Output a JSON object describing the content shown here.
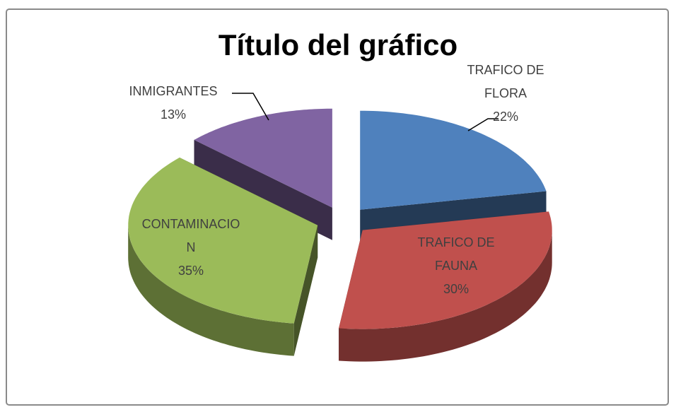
{
  "chart_data": {
    "type": "pie",
    "title": "Título del gráfico",
    "categories": [
      "TRAFICO DE FLORA",
      "TRAFICO DE FAUNA",
      "CONTAMINACION",
      "INMIGRANTES"
    ],
    "values": [
      22,
      30,
      35,
      13
    ],
    "value_labels": [
      "22%",
      "30%",
      "35%",
      "13%"
    ],
    "colors": [
      "#4f81bd",
      "#c0504d",
      "#9bbb59",
      "#8064a2"
    ]
  }
}
